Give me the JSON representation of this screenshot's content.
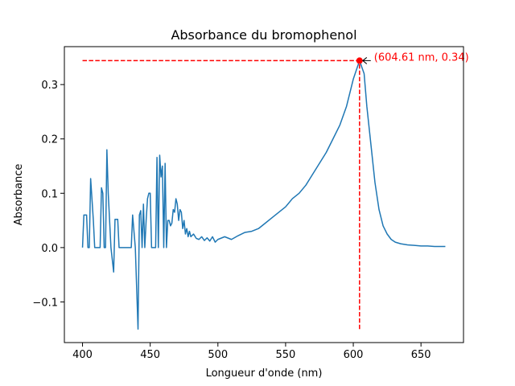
{
  "chart_data": {
    "type": "line",
    "title": "Absorbance du bromophenol",
    "xlabel": "Longueur d'onde (nm)",
    "ylabel": "Absorbance",
    "series": [
      {
        "name": "Absorbance",
        "color": "#1f77b4",
        "x": [
          400,
          401,
          403,
          404,
          405,
          406,
          408,
          409,
          413,
          414,
          415,
          416,
          417,
          418,
          419,
          421,
          423,
          424,
          426,
          427,
          435,
          436,
          437,
          439,
          441,
          442,
          443,
          444,
          445,
          446,
          447,
          448,
          449,
          450,
          451,
          453,
          454,
          455,
          456,
          457,
          458,
          459,
          460,
          461,
          462,
          463,
          464,
          465,
          466,
          467,
          468,
          469,
          470,
          471,
          472,
          473,
          474,
          475,
          476,
          477,
          478,
          479,
          480,
          482,
          484,
          486,
          488,
          490,
          492,
          494,
          496,
          498,
          500,
          505,
          510,
          515,
          520,
          525,
          530,
          535,
          540,
          545,
          550,
          555,
          560,
          565,
          570,
          575,
          580,
          585,
          590,
          595,
          600,
          604.61,
          608,
          610,
          613,
          616,
          619,
          622,
          625,
          628,
          631,
          635,
          640,
          645,
          650,
          655,
          660,
          665,
          668
        ],
        "values": [
          0.0,
          0.06,
          0.06,
          0.0,
          0.0,
          0.127,
          0.05,
          0.0,
          0.0,
          0.11,
          0.1,
          0.0,
          0.0,
          0.18,
          0.1,
          0.0,
          -0.045,
          0.052,
          0.052,
          0.0,
          0.0,
          0.0,
          0.06,
          0.0,
          -0.15,
          0.06,
          0.068,
          0.0,
          0.08,
          0.0,
          0.05,
          0.09,
          0.1,
          0.1,
          0.0,
          0.0,
          0.0,
          0.166,
          0.0,
          0.17,
          0.13,
          0.15,
          0.0,
          0.155,
          0.0,
          0.05,
          0.05,
          0.04,
          0.045,
          0.07,
          0.065,
          0.09,
          0.08,
          0.05,
          0.07,
          0.065,
          0.035,
          0.05,
          0.025,
          0.035,
          0.02,
          0.03,
          0.02,
          0.025,
          0.017,
          0.015,
          0.02,
          0.013,
          0.018,
          0.012,
          0.02,
          0.01,
          0.015,
          0.02,
          0.015,
          0.022,
          0.028,
          0.03,
          0.035,
          0.045,
          0.055,
          0.065,
          0.075,
          0.09,
          0.1,
          0.115,
          0.135,
          0.155,
          0.175,
          0.2,
          0.225,
          0.26,
          0.31,
          0.344,
          0.32,
          0.26,
          0.19,
          0.12,
          0.07,
          0.04,
          0.025,
          0.015,
          0.01,
          0.007,
          0.005,
          0.004,
          0.003,
          0.003,
          0.002,
          0.002,
          0.002
        ]
      }
    ],
    "peak": {
      "x": 604.61,
      "y": 0.344,
      "color": "red",
      "label": "(604.61 nm, 0.34)"
    },
    "hline_xmin": 400,
    "vline_ymin": -0.15,
    "xlim": [
      386.6,
      681.4
    ],
    "ylim": [
      -0.1748,
      0.3698
    ],
    "xticks": [
      400,
      450,
      500,
      550,
      600,
      650
    ],
    "yticks": [
      {
        "value": -0.1,
        "label": "−0.1"
      },
      {
        "value": 0,
        "label": "0.0"
      },
      0.1,
      0.2,
      0.3
    ]
  }
}
